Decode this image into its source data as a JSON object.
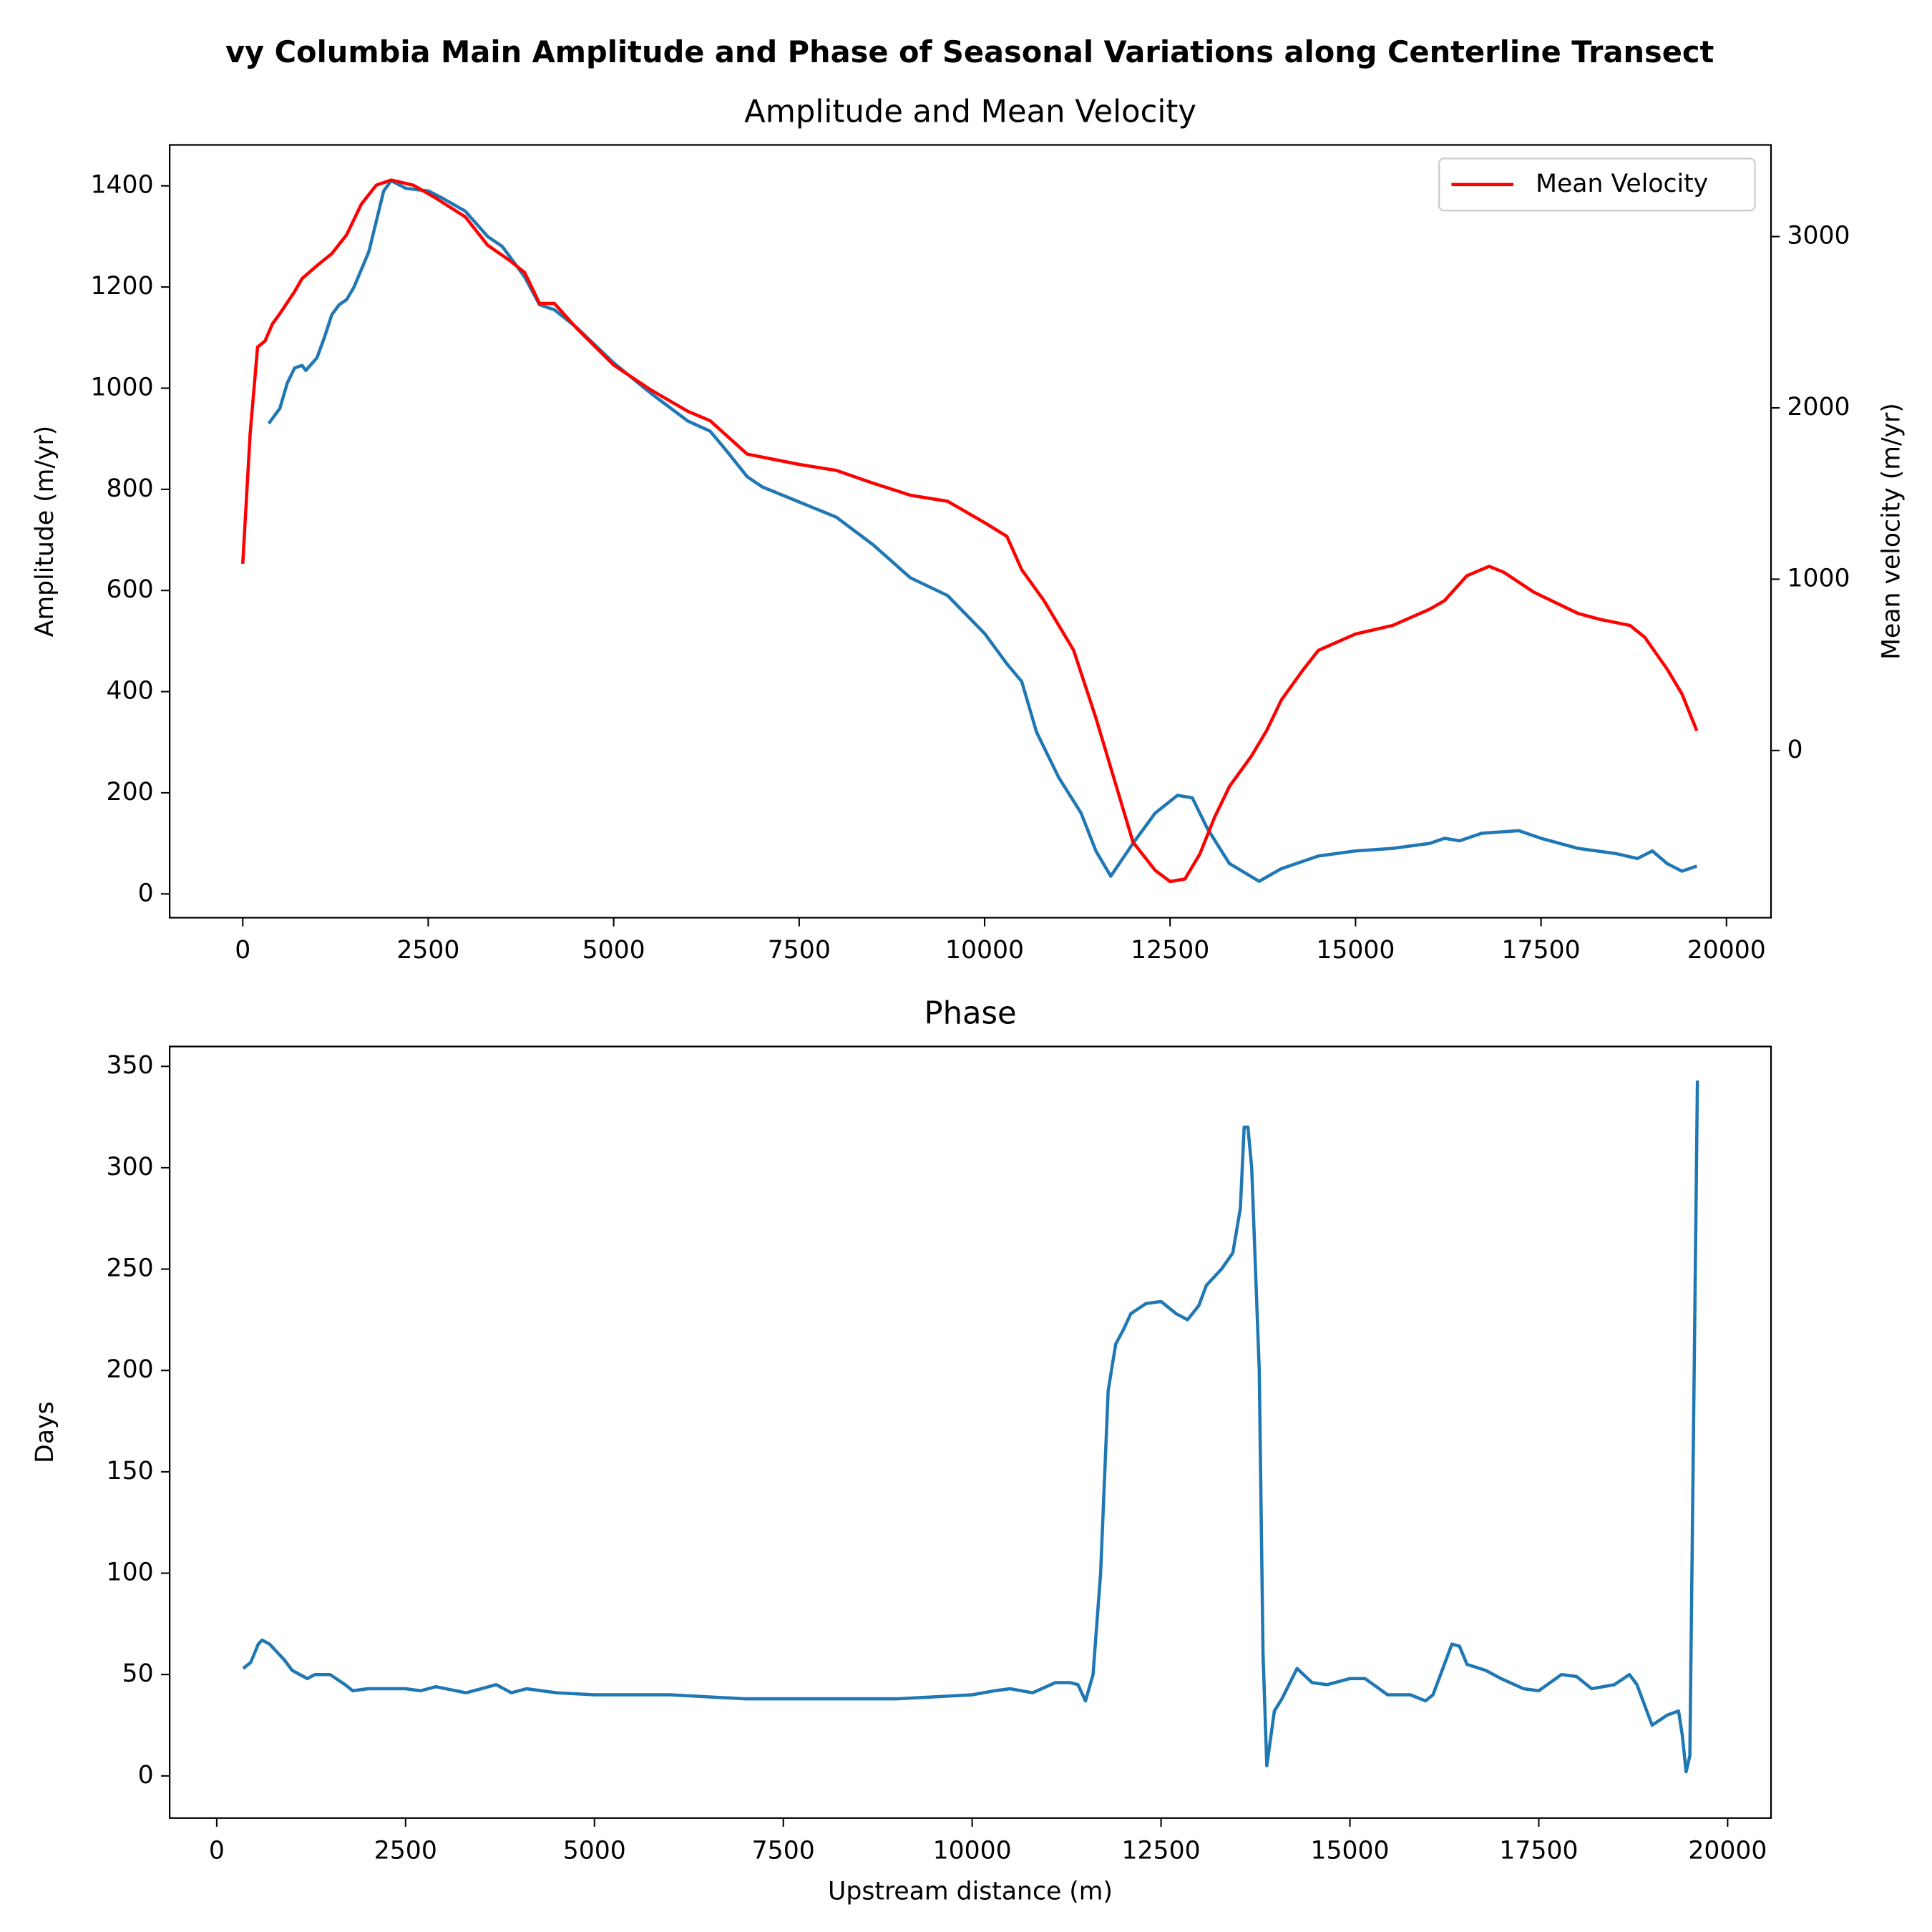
{
  "title": "vy Columbia Main Amplitude and Phase of Seasonal Variations along Centerline Transect",
  "chart_data": [
    {
      "type": "line",
      "title": "Amplitude and Mean Velocity",
      "ylabel": "Amplitude (m/yr)",
      "y2label": "Mean velocity (m/yr)",
      "xlim": [
        -985,
        20600
      ],
      "xticks": [
        0,
        2500,
        5000,
        7500,
        10000,
        12500,
        15000,
        17500,
        20000
      ],
      "ylim": [
        -47,
        1481
      ],
      "yticks": [
        0,
        200,
        400,
        600,
        800,
        1000,
        1200,
        1400
      ],
      "y2lim": [
        -976,
        3535
      ],
      "y2ticks": [
        0,
        1000,
        2000,
        3000
      ],
      "legend": "upper right",
      "series": [
        {
          "color": "#1f77b4",
          "x": [
            350,
            500,
            600,
            700,
            800,
            850,
            1000,
            1100,
            1200,
            1300,
            1400,
            1500,
            1700,
            1800,
            1900,
            2000,
            2200,
            2500,
            2700,
            3000,
            3300,
            3500,
            3800,
            4000,
            4200,
            4500,
            5000,
            5500,
            6000,
            6300,
            6500,
            6800,
            7000,
            7500,
            8000,
            8500,
            9000,
            9500,
            10000,
            10300,
            10500,
            10700,
            11000,
            11300,
            11500,
            11700,
            12000,
            12300,
            12600,
            12800,
            13000,
            13300,
            13700,
            14000,
            14500,
            15000,
            15500,
            16000,
            16200,
            16400,
            16700,
            17200,
            17500,
            18000,
            18500,
            18800,
            19000,
            19200,
            19400,
            19600
          ],
          "values": [
            930,
            960,
            1010,
            1040,
            1045,
            1035,
            1060,
            1100,
            1145,
            1165,
            1175,
            1200,
            1270,
            1330,
            1390,
            1410,
            1395,
            1390,
            1375,
            1350,
            1300,
            1280,
            1220,
            1165,
            1155,
            1120,
            1050,
            990,
            935,
            915,
            880,
            825,
            805,
            775,
            745,
            690,
            625,
            590,
            515,
            455,
            420,
            320,
            230,
            160,
            85,
            35,
            100,
            160,
            195,
            190,
            130,
            60,
            25,
            50,
            75,
            85,
            90,
            100,
            110,
            105,
            120,
            125,
            110,
            90,
            80,
            70,
            85,
            60,
            45,
            55
          ]
        },
        {
          "name": "Mean Velocity",
          "color": "#ff0000",
          "axis": "y2",
          "x": [
            0,
            100,
            200,
            300,
            400,
            500,
            700,
            800,
            1000,
            1200,
            1400,
            1600,
            1800,
            2000,
            2300,
            2600,
            3000,
            3300,
            3600,
            3800,
            4000,
            4200,
            4500,
            5000,
            5500,
            6000,
            6300,
            6800,
            7500,
            8000,
            8500,
            9000,
            9500,
            10000,
            10300,
            10500,
            10800,
            11000,
            11200,
            11500,
            11800,
            12000,
            12300,
            12500,
            12700,
            12900,
            13100,
            13300,
            13600,
            13800,
            14000,
            14300,
            14500,
            15000,
            15500,
            16000,
            16200,
            16500,
            16800,
            17000,
            17400,
            18000,
            18300,
            18700,
            18900,
            19200,
            19400,
            19600
          ],
          "values": [
            1090,
            1850,
            2355,
            2390,
            2490,
            2550,
            2680,
            2755,
            2830,
            2900,
            3010,
            3190,
            3300,
            3330,
            3300,
            3225,
            3115,
            2950,
            2860,
            2790,
            2610,
            2610,
            2465,
            2250,
            2105,
            1980,
            1925,
            1730,
            1670,
            1635,
            1560,
            1490,
            1455,
            1330,
            1250,
            1055,
            875,
            730,
            585,
            190,
            -245,
            -535,
            -700,
            -765,
            -750,
            -605,
            -390,
            -210,
            -30,
            115,
            295,
            475,
            585,
            680,
            730,
            825,
            875,
            1020,
            1075,
            1040,
            925,
            800,
            765,
            730,
            660,
            475,
            330,
            115
          ]
        }
      ]
    },
    {
      "type": "line",
      "title": "Phase",
      "xlabel": "Upstream distance (m)",
      "ylabel": "Days",
      "xlim": [
        -623,
        20574
      ],
      "xticks": [
        0,
        2500,
        5000,
        7500,
        10000,
        12500,
        15000,
        17500,
        20000
      ],
      "ylim": [
        -20.8,
        359.8
      ],
      "yticks": [
        0,
        50,
        100,
        150,
        200,
        250,
        300,
        350
      ],
      "series": [
        {
          "color": "#1f77b4",
          "x": [
            350,
            450,
            550,
            600,
            700,
            900,
            1000,
            1200,
            1300,
            1500,
            1700,
            1800,
            2000,
            2500,
            2700,
            2900,
            3300,
            3500,
            3700,
            3900,
            4100,
            4500,
            5000,
            6000,
            7000,
            7500,
            8000,
            9000,
            9500,
            10000,
            10300,
            10500,
            10800,
            11100,
            11300,
            11400,
            11500,
            11600,
            11700,
            11800,
            11900,
            12000,
            12100,
            12300,
            12500,
            12700,
            12850,
            13000,
            13100,
            13300,
            13450,
            13550,
            13600,
            13650,
            13700,
            13800,
            13850,
            13900,
            14000,
            14100,
            14300,
            14500,
            14700,
            15000,
            15200,
            15500,
            15800,
            16000,
            16100,
            16200,
            16350,
            16450,
            16550,
            16800,
            17000,
            17300,
            17500,
            17800,
            18000,
            18200,
            18500,
            18700,
            18800,
            19000,
            19200,
            19350,
            19400,
            19450,
            19500,
            19600
          ],
          "values": [
            53,
            56,
            65,
            67,
            65,
            57,
            52,
            48,
            50,
            50,
            45,
            42,
            43,
            43,
            42,
            44,
            41,
            43,
            45,
            41,
            43,
            41,
            40,
            40,
            38,
            38,
            38,
            38,
            39,
            40,
            42,
            43,
            41,
            46,
            46,
            45,
            37,
            50,
            100,
            190,
            213,
            220,
            228,
            233,
            234,
            228,
            225,
            232,
            242,
            250,
            258,
            280,
            320,
            320,
            300,
            200,
            60,
            5,
            32,
            38,
            53,
            46,
            45,
            48,
            48,
            40,
            40,
            37,
            40,
            50,
            65,
            64,
            55,
            52,
            48,
            43,
            42,
            50,
            49,
            43,
            45,
            50,
            45,
            25,
            30,
            32,
            20,
            2,
            10,
            343
          ]
        }
      ]
    }
  ]
}
